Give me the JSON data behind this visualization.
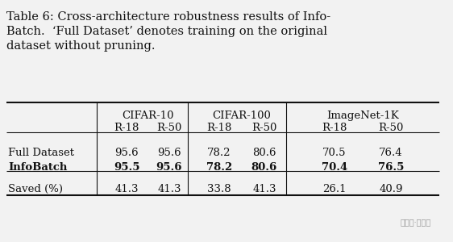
{
  "title_line1": "Table 6: Cross-architecture robustness results of Info-",
  "title_line2": "Batch.  ‘Full Dataset’ denotes training on the original",
  "title_line3": "dataset without pruning.",
  "col_groups": [
    "CIFAR-10",
    "CIFAR-100",
    "ImageNet-1K"
  ],
  "sub_cols": [
    "R-18",
    "R-50"
  ],
  "row_labels": [
    "Full Dataset",
    "InfoBatch",
    "Saved (%)"
  ],
  "row_bold": [
    false,
    true,
    false
  ],
  "data": {
    "Full Dataset": [
      "95.6",
      "95.6",
      "78.2",
      "80.6",
      "70.5",
      "76.4"
    ],
    "InfoBatch": [
      "95.5",
      "95.6",
      "78.2",
      "80.6",
      "70.4",
      "76.5"
    ],
    "Saved (%)": [
      "41.3",
      "41.3",
      "33.8",
      "41.3",
      "26.1",
      "40.9"
    ]
  },
  "bg_color": "#f2f2f2",
  "text_color": "#111111",
  "watermark": "公众号·量子位",
  "title_fontsize": 10.5,
  "table_fontsize": 9.5
}
